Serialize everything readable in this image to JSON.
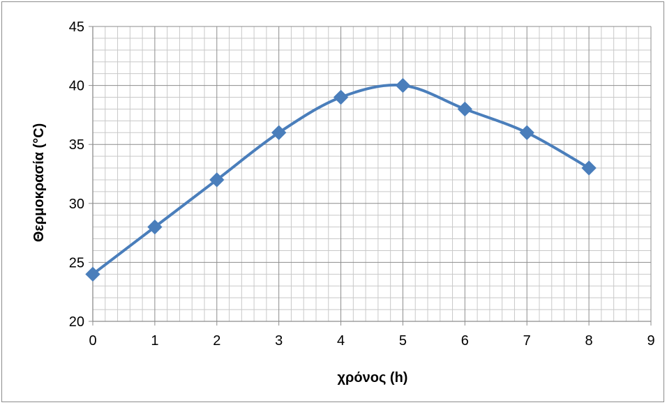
{
  "chart_data": {
    "type": "line",
    "title": "",
    "xlabel": "χρόνος (h)",
    "ylabel": "Θερμοκρασία   (°C)",
    "xlim": [
      0,
      9
    ],
    "ylim": [
      20,
      45
    ],
    "x_ticks": [
      0,
      1,
      2,
      3,
      4,
      5,
      6,
      7,
      8,
      9
    ],
    "y_ticks": [
      20,
      25,
      30,
      35,
      40,
      45
    ],
    "x_minor_step": 0.2,
    "y_minor_step": 1,
    "grid": true,
    "legend": "none",
    "smooth": true,
    "marker": "diamond",
    "series": [
      {
        "x": [
          0,
          1,
          2,
          3,
          4,
          5,
          6,
          7,
          8
        ],
        "values": [
          24,
          28,
          32,
          36,
          39,
          40,
          38,
          36,
          33
        ],
        "color": "#4a7ebb"
      }
    ],
    "colors": {
      "major_grid": "#8c8c8c",
      "minor_grid": "#c8c8c8",
      "series": "#4a7ebb"
    }
  }
}
